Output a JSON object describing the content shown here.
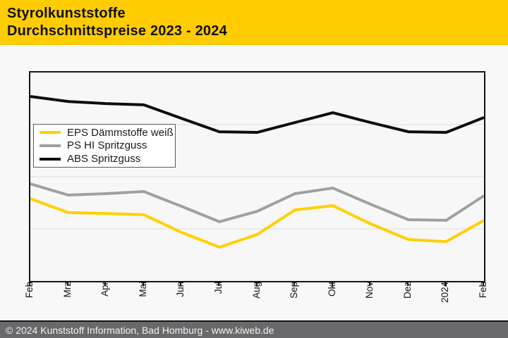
{
  "header": {
    "title_line1": "Styrolkunststoffe",
    "title_line2": "Durchschnittspreise 2023 - 2024",
    "background": "#FFCC00",
    "text_color": "#111111"
  },
  "footer": {
    "text": "© 2024 Kunststoff Information, Bad Homburg - www.kiweb.de",
    "background": "#69696C",
    "text_color": "#F2F2F2"
  },
  "chart_data": {
    "type": "line",
    "title": "Durchschnittspreise 2023 - 2024",
    "x_labels": [
      "Feb",
      "Mrz",
      "Apr",
      "Mai",
      "Jun",
      "Jul",
      "Aug",
      "Sep",
      "Okt",
      "Nov",
      "Dez",
      "2024",
      "Feb"
    ],
    "y_axis": {
      "tick_labels_visible": false,
      "scale": "relative level, % of plot height (no numeric labels shown in image)",
      "range_pct": [
        0,
        100
      ],
      "gridlines_pct": [
        25,
        50,
        75
      ],
      "gridline_color": "#dcdcdc"
    },
    "legend": {
      "position": "inside-top-left",
      "background": "#ffffff",
      "border_color": "#5a5a5a"
    },
    "series": [
      {
        "name": "EPS Dämmstoffe weiß",
        "color": "#FFD000",
        "values_pct": [
          39.5,
          32.8,
          32.4,
          31.8,
          23.3,
          16.2,
          22.3,
          34.1,
          36.1,
          27.4,
          19.9,
          18.9,
          29.1
        ]
      },
      {
        "name": "PS HI Spritzguss",
        "color": "#A0A0A0",
        "values_pct": [
          46.6,
          41.2,
          41.9,
          42.9,
          35.8,
          28.4,
          33.4,
          41.9,
          44.6,
          36.8,
          29.4,
          29.1,
          40.9
        ]
      },
      {
        "name": "ABS Spritzguss",
        "color": "#0D0D0D",
        "values_pct": [
          88.5,
          86.1,
          85.1,
          84.5,
          78.0,
          71.6,
          71.3,
          76.0,
          80.7,
          76.0,
          71.6,
          71.3,
          78.4
        ]
      }
    ]
  }
}
